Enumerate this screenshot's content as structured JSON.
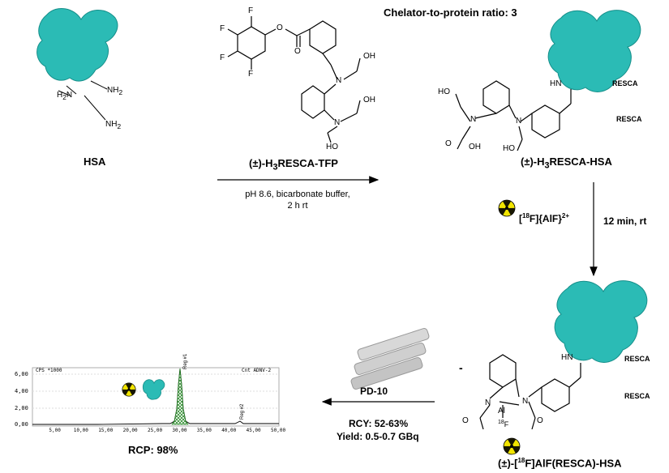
{
  "labels": {
    "hsa": "HSA",
    "ratio": "Chelator-to-protein ratio: 3",
    "tfp_pre": "(±)-H",
    "tfp_sub": "3",
    "tfp_post": "RESCA-TFP",
    "cond1": "pH 8.6, bicarbonate buffer,",
    "cond2": "2 h rt",
    "resca_hsa_pre": "(±)-H",
    "resca_hsa_sub": "3",
    "resca_hsa_post": "RESCA-HSA",
    "time": "12 min, rt",
    "alf_b1": "[",
    "alf_sup1": "18",
    "alf_b2": "F]{AlF}",
    "alf_sup2": "2+",
    "final_pre": "(±)-[",
    "final_sup": "18",
    "final_post": "F]AlF(RESCA)-HSA",
    "pd10": "PD-10",
    "rcy": "RCY: 52-63%",
    "yield": "Yield: 0.5-0.7 GBq",
    "rcp": "RCP: 98%",
    "minus": "-",
    "resca1": "RESCA",
    "resca2": "RESCA",
    "resca3": "RESCA",
    "resca4": "RESCA",
    "hn1": "HN",
    "hn2": "HN",
    "nh2_1": "NH2",
    "nh2_2": "H2N",
    "nh2_3": "NH2"
  },
  "chem": {
    "F": "F",
    "O": "O",
    "N": "N",
    "OH": "OH",
    "HO": "HO",
    "Al": "Al",
    "F18": "18F"
  },
  "chromatogram": {
    "ylabel": "CPS *1000",
    "channel": "Cnt ADNV-2",
    "yticks": [
      "6,00",
      "4,00",
      "2,00",
      "0,00"
    ],
    "xticks": [
      "5,00",
      "10,00",
      "15,00",
      "20,00",
      "25,00",
      "30,00",
      "35,00",
      "40,00",
      "45,00",
      "50,00"
    ],
    "peak_labels": [
      "Reg #1",
      "Reg #2"
    ]
  },
  "colors": {
    "protein": "#2bbbb5",
    "protein_dark": "#168f8a",
    "radiation": "#f2e500"
  }
}
